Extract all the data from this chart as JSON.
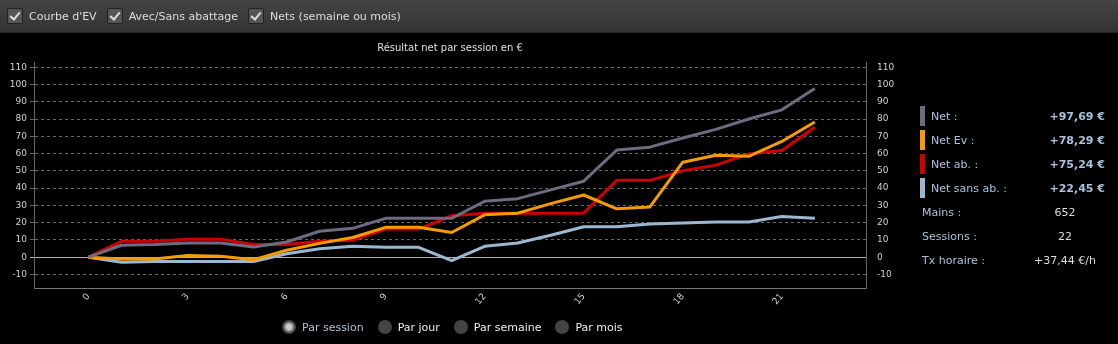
{
  "chart_data": {
    "type": "line",
    "title": "Résultat net par session en €",
    "x": [
      0,
      1,
      2,
      3,
      4,
      5,
      6,
      7,
      8,
      9,
      10,
      11,
      12,
      13,
      14,
      15,
      16,
      17,
      18,
      19,
      20,
      21,
      22
    ],
    "series": [
      {
        "name": "Net :",
        "color": "#6e6a80",
        "values": [
          0,
          6.9,
          7.3,
          8.2,
          8.2,
          5.9,
          8.8,
          15,
          16.7,
          22.5,
          22.5,
          22.5,
          32.4,
          33.9,
          39,
          44,
          62,
          63.7,
          69,
          74,
          80,
          85.3,
          97.7
        ]
      },
      {
        "name": "Net Ev :",
        "color": "#f59c00",
        "values": [
          0,
          -1,
          -1,
          1,
          0.6,
          -1.5,
          4,
          8,
          11.4,
          17.3,
          17.3,
          14.3,
          24.5,
          25.5,
          31,
          36,
          28,
          29,
          55,
          59,
          58.4,
          67,
          78.3
        ]
      },
      {
        "name": "Net ab. :",
        "color": "#cc0000",
        "values": [
          0,
          9.2,
          9.2,
          10.4,
          10.4,
          7.3,
          7.3,
          9.2,
          9.8,
          16.3,
          16.3,
          24,
          25.5,
          25.5,
          25.5,
          25.5,
          44.5,
          44.5,
          50,
          53.3,
          59.8,
          61.8,
          75.2
        ]
      },
      {
        "name": "Net sans ab. :",
        "color": "#9ab8d2",
        "values": [
          0,
          -2.9,
          -2.5,
          -2.5,
          -2.5,
          -2.5,
          2,
          4.9,
          6.3,
          5.7,
          5.7,
          -2,
          6.3,
          8.2,
          12.7,
          17.6,
          17.6,
          19.2,
          19.8,
          20.4,
          20.4,
          23.5,
          22.5
        ]
      }
    ],
    "xlim": [
      -1.65,
      23.55
    ],
    "xticks": [
      0,
      3,
      6,
      9,
      12,
      15,
      18,
      21
    ],
    "ylim": [
      -18,
      113
    ],
    "yticks": [
      -10,
      0,
      10,
      20,
      30,
      40,
      50,
      60,
      70,
      80,
      90,
      100,
      110
    ],
    "y2lim": [
      -18,
      113
    ],
    "y2ticks": [
      -10,
      0,
      10,
      20,
      30,
      40,
      50,
      60,
      70,
      80,
      90,
      100,
      110
    ],
    "grid": "y",
    "legend": "right",
    "marker": "none",
    "line_style": "solid",
    "annotations": [
      "Courbe d'EV",
      "Avec/Sans abattage",
      "Nets (semaine ou mois)",
      "+97,69 €",
      "+78,29 €",
      "+75,24 €",
      "+22,45 €",
      "Mains :",
      "652",
      "Sessions :",
      "22",
      "Tx horaire :",
      "+37,44 €/h",
      "Par session",
      "Par jour",
      "Par semaine",
      "Par mois"
    ]
  }
}
